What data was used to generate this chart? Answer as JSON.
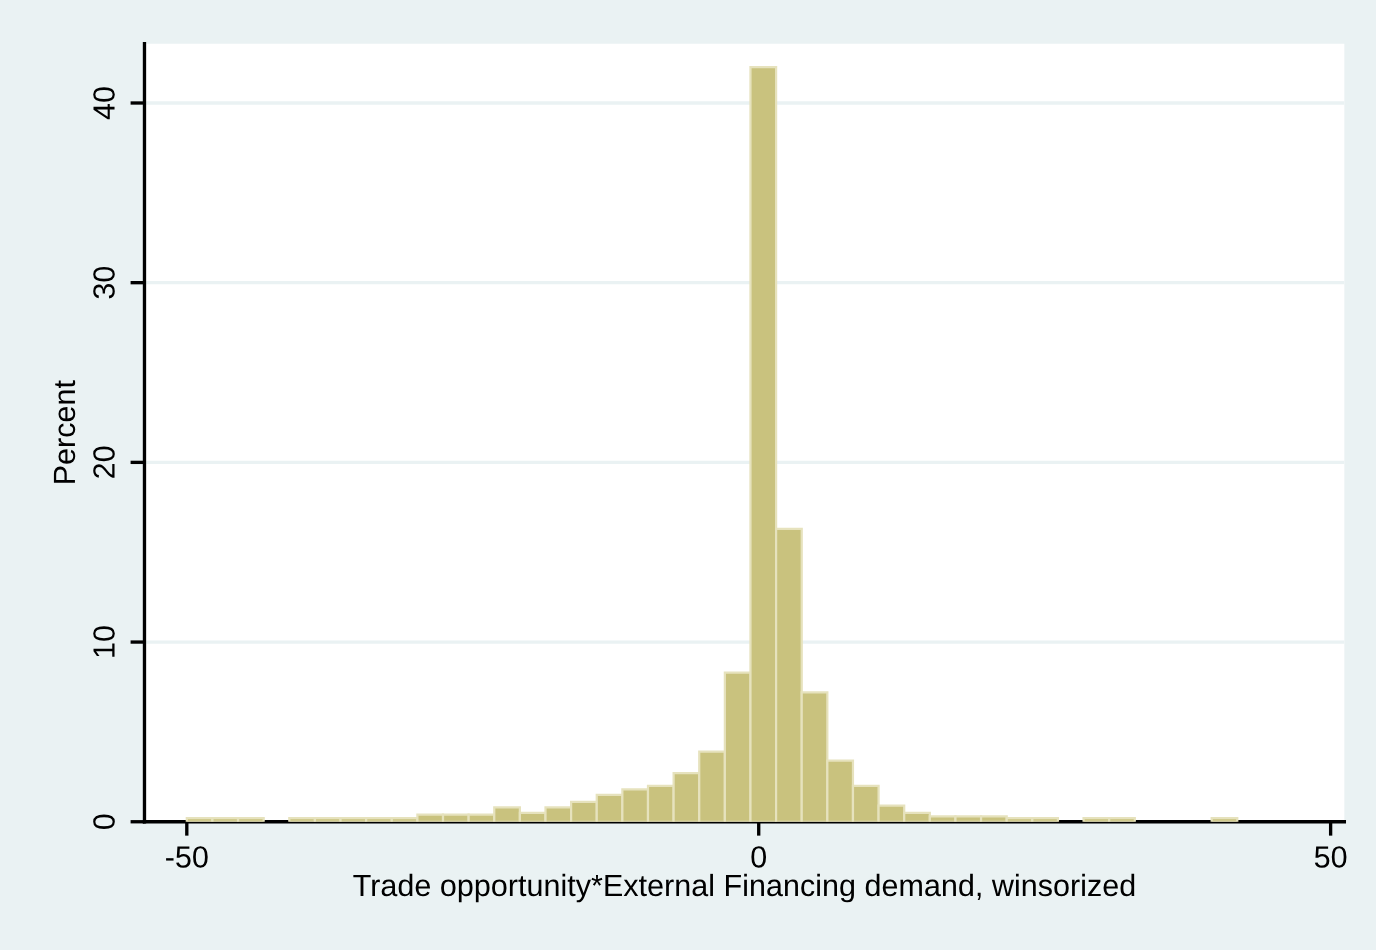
{
  "chart_data": {
    "type": "histogram",
    "bins": [
      -50,
      -47.76,
      -45.52,
      -43.28,
      -41.04,
      -38.8,
      -36.56,
      -34.32,
      -32.08,
      -29.84,
      -27.6,
      -25.36,
      -23.12,
      -20.88,
      -18.64,
      -16.4,
      -14.16,
      -11.92,
      -9.68,
      -7.44,
      -5.2,
      -2.96,
      -0.72,
      1.52,
      3.76,
      6,
      8.24,
      10.48,
      12.72,
      14.96,
      17.2,
      19.44,
      21.68,
      23.92,
      26.16,
      28.4,
      30.64,
      32.88,
      35.12,
      37.36,
      39.6,
      41.84
    ],
    "values": [
      0.2,
      0.2,
      0.2,
      0,
      0.2,
      0.2,
      0.2,
      0.2,
      0.2,
      0.4,
      0.4,
      0.4,
      0.8,
      0.5,
      0.8,
      1.1,
      1.5,
      1.8,
      2.0,
      2.7,
      3.9,
      8.3,
      42,
      16.3,
      7.2,
      3.4,
      2.0,
      0.9,
      0.5,
      0.3,
      0.3,
      0.3,
      0.2,
      0.2,
      0,
      0.2,
      0.2,
      0,
      0,
      0,
      0.2
    ],
    "color": "#c9c27e",
    "xlabel": "Trade opportunity*External Financing demand, winsorized",
    "ylabel": "Percent",
    "xlim": [
      -53.7,
      51.2
    ],
    "ylim": [
      0,
      43.3
    ],
    "xticks": [
      -50,
      0,
      50
    ],
    "yticks": [
      0,
      10,
      20,
      30,
      40
    ],
    "grid": "y"
  }
}
